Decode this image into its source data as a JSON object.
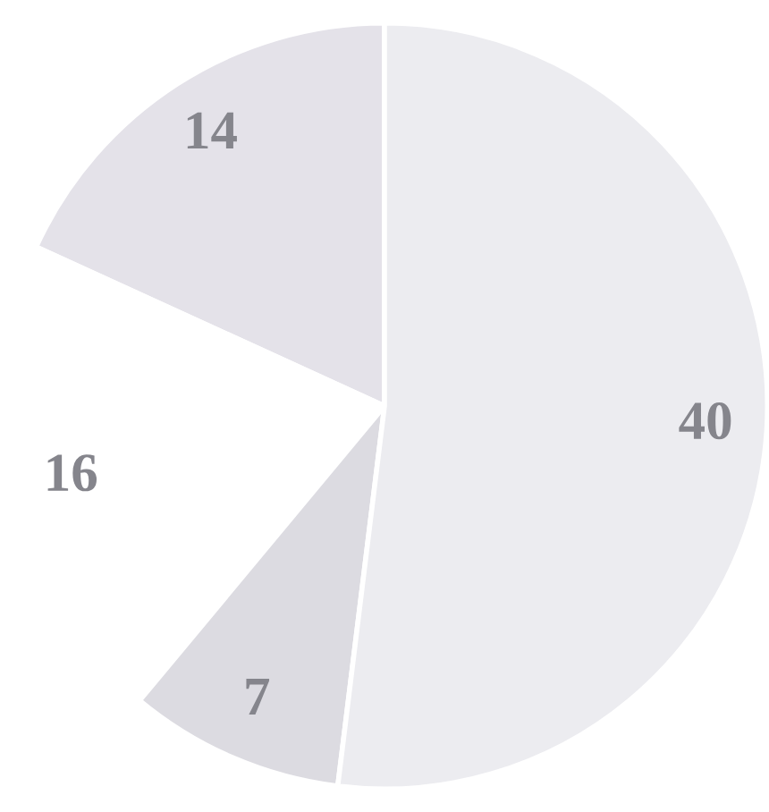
{
  "chart_data": {
    "type": "pie",
    "categories": [
      null,
      null,
      null,
      null
    ],
    "values": [
      14,
      16,
      7,
      40
    ],
    "colors": [
      "#e4e2e9",
      "#ffffff",
      "#dcdbe1",
      "#ececf0"
    ],
    "data_labels": true,
    "legend": false
  }
}
